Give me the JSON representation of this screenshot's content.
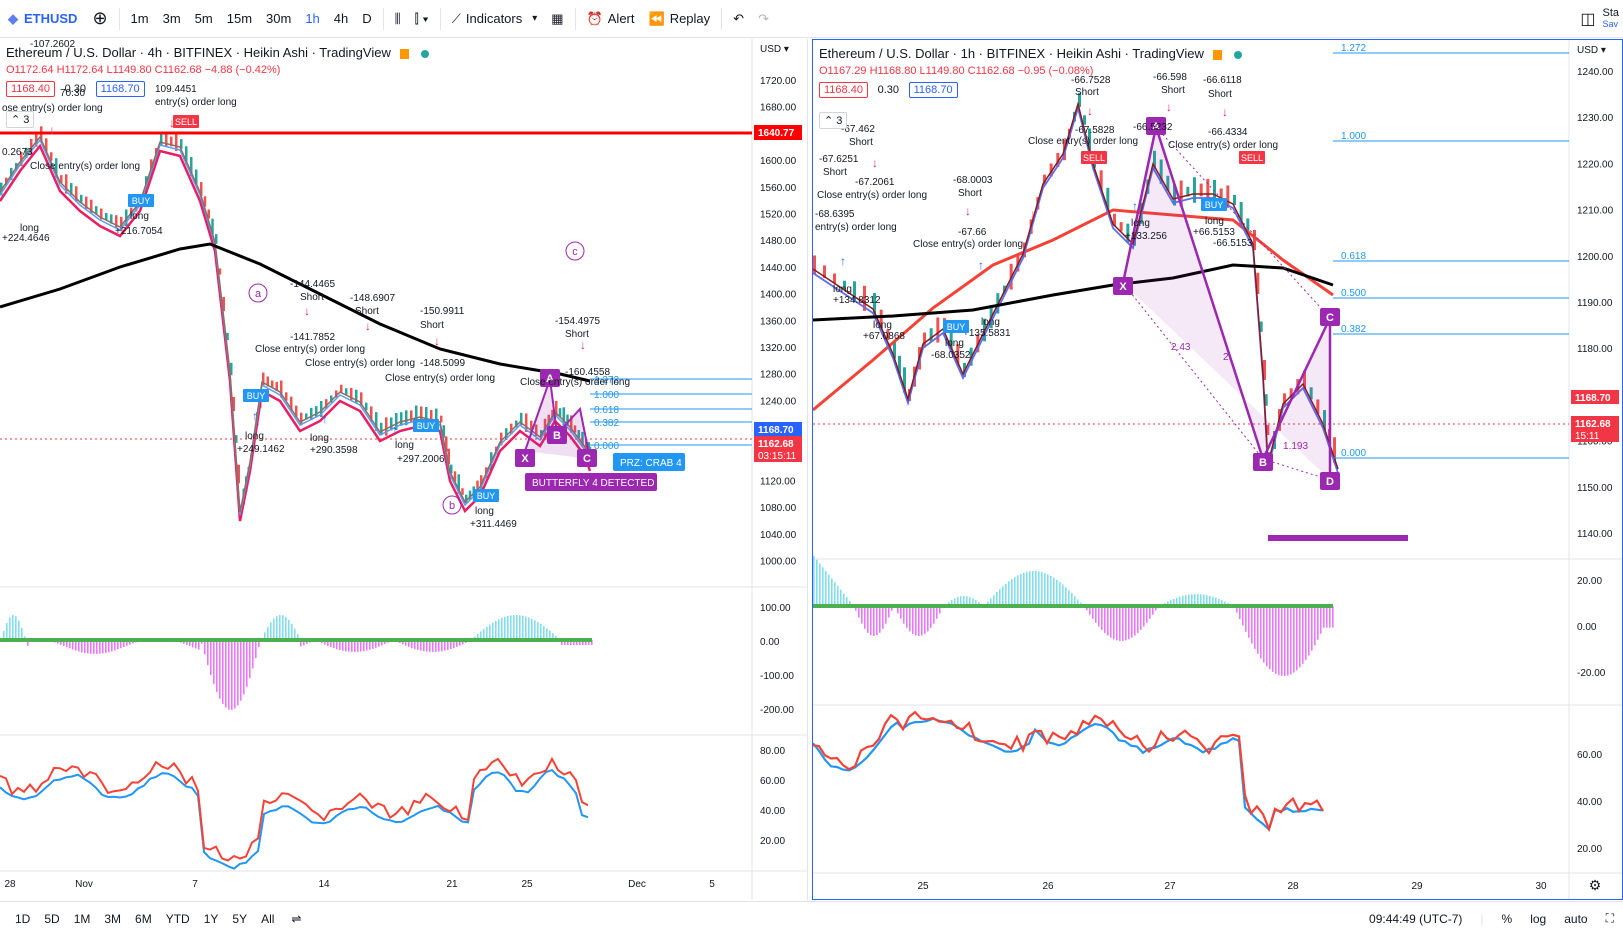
{
  "toolbar": {
    "symbol": "ETHUSD",
    "intervals": [
      "1m",
      "3m",
      "5m",
      "15m",
      "30m",
      "1h",
      "4h",
      "D"
    ],
    "active_interval": "1h",
    "indicators_label": "Indicators",
    "alert_label": "Alert",
    "replay_label": "Replay",
    "right_label": "Sta",
    "right_sub": "Sav"
  },
  "left_chart": {
    "title": "Ethereum / U.S. Dollar · 4h · BITFINEX · Heikin Ashi · TradingView",
    "ohlc": {
      "o": "O1172.64",
      "h": "H1172.64",
      "l": "L1149.80",
      "c": "C1162.68",
      "chg": "−4.88 (−0.42%)"
    },
    "bid": "1168.40",
    "spread": "0.30",
    "ask": "1168.70",
    "count": "3",
    "currency": "USD",
    "price_axis": [
      "1720.00",
      "1680.00",
      "1640.00",
      "1600.00",
      "1560.00",
      "1520.00",
      "1480.00",
      "1440.00",
      "1400.00",
      "1360.00",
      "1320.00",
      "1280.00",
      "1240.00",
      "1200.00",
      "1160.00",
      "1120.00",
      "1080.00",
      "1040.00",
      "1000.00"
    ],
    "macd_axis": [
      "100.00",
      "0.00",
      "-100.00",
      "-200.00"
    ],
    "rsi_axis": [
      "80.00",
      "60.00",
      "40.00",
      "20.00"
    ],
    "time_axis": [
      "28",
      "Nov",
      "7",
      "14",
      "21",
      "25",
      "Dec",
      "5"
    ],
    "tag_red_line": "1640.77",
    "tag_ask": "1168.70",
    "tag_last": "1162.68",
    "tag_timer": "03:15:11",
    "crab_label": "PRZ: CRAB 4",
    "butterfly_label": "BUTTERFLY 4 DETECTED",
    "fib_labels": [
      "1.272",
      "1.000",
      "0.618",
      "0.382",
      "0.000"
    ],
    "wave_labels": [
      "a",
      "b",
      "c"
    ],
    "pattern_points": [
      "X",
      "A",
      "B",
      "C"
    ],
    "annotations": [
      {
        "t": "-107.2602"
      },
      {
        "t": "109.4451"
      },
      {
        "t": "entry(s) order long"
      },
      {
        "t": "ose entry(s) order long"
      },
      {
        "t": "Close entry(s) order long"
      },
      {
        "t": "+224.4646"
      },
      {
        "t": "long"
      },
      {
        "t": "+216.7054"
      },
      {
        "t": "long"
      },
      {
        "t": "-144.4465"
      },
      {
        "t": "Short"
      },
      {
        "t": "-148.6907"
      },
      {
        "t": "Short"
      },
      {
        "t": "-150.9911"
      },
      {
        "t": "Short"
      },
      {
        "t": "-141.7852"
      },
      {
        "t": "-148.5099"
      },
      {
        "t": "-154.4975"
      },
      {
        "t": "Short"
      },
      {
        "t": "-160.4558"
      },
      {
        "t": "Close entry(s) order long"
      },
      {
        "t": "Close entry(s) order long"
      },
      {
        "t": "Close entry(s) order long"
      },
      {
        "t": "Close entry(s) order long"
      },
      {
        "t": "long"
      },
      {
        "t": "+249.1462"
      },
      {
        "t": "long"
      },
      {
        "t": "+290.3598"
      },
      {
        "t": "long"
      },
      {
        "t": "+297.2006"
      },
      {
        "t": "long"
      },
      {
        "t": "+311.4469"
      },
      {
        "t": "0.2673"
      },
      {
        "t": "70.30"
      }
    ]
  },
  "right_chart": {
    "title": "Ethereum / U.S. Dollar · 1h · BITFINEX · Heikin Ashi · TradingView",
    "ohlc": {
      "o": "O1167.29",
      "h": "H1168.80",
      "l": "L1149.80",
      "c": "C1162.68",
      "chg": "−0.95 (−0.08%)"
    },
    "bid": "1168.40",
    "spread": "0.30",
    "ask": "1168.70",
    "count": "3",
    "currency": "USD",
    "price_axis": [
      "1240.00",
      "1230.00",
      "1220.00",
      "1210.00",
      "1200.00",
      "1190.00",
      "1180.00",
      "1170.00",
      "1160.00",
      "1150.00",
      "1140.00"
    ],
    "macd_axis": [
      "20.00",
      "0.00",
      "-20.00"
    ],
    "rsi_axis": [
      "60.00",
      "40.00",
      "20.00"
    ],
    "time_axis": [
      "25",
      "26",
      "27",
      "28",
      "29",
      "30"
    ],
    "tag_ask": "1168.70",
    "tag_last": "1162.68",
    "tag_timer": "15:11",
    "fib_labels": [
      "1.272",
      "1.000",
      "0.618",
      "0.500",
      "0.382",
      "0.000"
    ],
    "pattern_points": [
      "X",
      "A",
      "B",
      "C",
      "D"
    ],
    "ratio_labels": [
      "2.43",
      "2.",
      "1.193"
    ],
    "annotations": [
      {
        "t": "-67.462"
      },
      {
        "t": "Short"
      },
      {
        "t": "-67.6251"
      },
      {
        "t": "Short"
      },
      {
        "t": "-67.2061"
      },
      {
        "t": "Close entry(s) order long"
      },
      {
        "t": "-68.0003"
      },
      {
        "t": "Short"
      },
      {
        "t": "-68.6395"
      },
      {
        "t": "entry(s) order long"
      },
      {
        "t": "-67.66"
      },
      {
        "t": "Close entry(s) order long"
      },
      {
        "t": "-66.7528"
      },
      {
        "t": "Short"
      },
      {
        "t": "-67.5828"
      },
      {
        "t": "Close entry(s) order long"
      },
      {
        "t": "-66.598"
      },
      {
        "t": "Short"
      },
      {
        "t": "-66.5232"
      },
      {
        "t": "-66.6118"
      },
      {
        "t": "Short"
      },
      {
        "t": "-66.4334"
      },
      {
        "t": "Close entry(s) order long"
      },
      {
        "t": "long"
      },
      {
        "t": "+134.8312"
      },
      {
        "t": "long"
      },
      {
        "t": "+67.0868"
      },
      {
        "t": "long"
      },
      {
        "t": "-68.0352"
      },
      {
        "t": "long"
      },
      {
        "t": "+135.5831"
      },
      {
        "t": "long"
      },
      {
        "t": "+133.256"
      },
      {
        "t": "long"
      },
      {
        "t": "+66.5153"
      },
      {
        "t": "-66.5153"
      }
    ]
  },
  "bottombar": {
    "ranges": [
      "1D",
      "5D",
      "1M",
      "3M",
      "6M",
      "YTD",
      "1Y",
      "5Y",
      "All"
    ],
    "clock": "09:44:49 (UTC-7)",
    "pct": "%",
    "log": "log",
    "auto": "auto"
  },
  "colors": {
    "red": "#f23645",
    "blue": "#2962ff",
    "purple": "#9c27b0",
    "green": "#26a69a"
  }
}
